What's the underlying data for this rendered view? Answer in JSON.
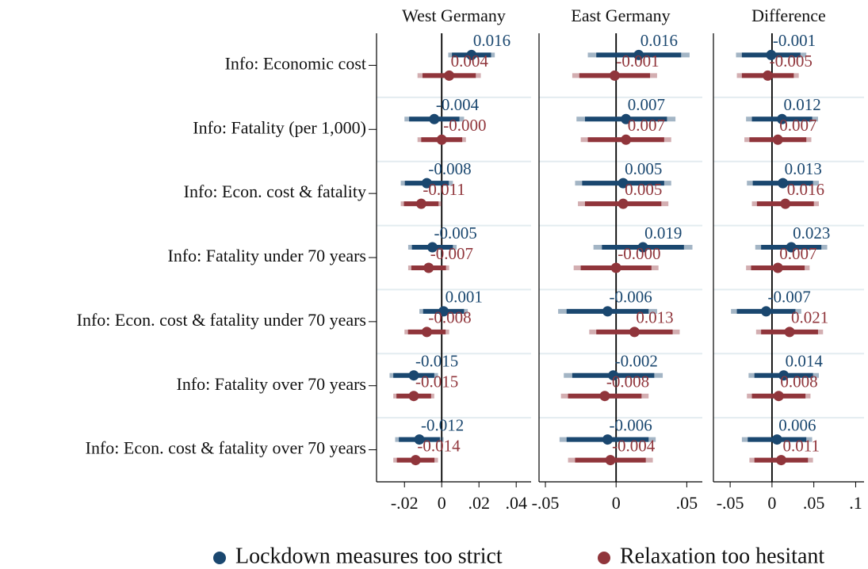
{
  "chart_data": [
    {
      "type": "coefplot",
      "title": "West Germany",
      "categories": [
        "Info: Economic cost",
        "Info: Fatality (per 1,000)",
        "Info: Econ. cost & fatality",
        "Info: Fatality under 70 years",
        "Info: Econ. cost & fatality under 70 years",
        "Info: Fatality over 70 years",
        "Info: Econ. cost & fatality over 70 years"
      ],
      "xlim": [
        -0.035,
        0.048
      ],
      "xticks": [
        {
          "value": -0.02,
          "label": "-.02"
        },
        0,
        {
          "value": 0.02,
          "label": ".02"
        },
        {
          "value": 0.04,
          "label": ".04"
        }
      ],
      "series": [
        {
          "name": "Lockdown measures too strict",
          "color": "#1a476f",
          "values": [
            0.016,
            -0.004,
            -0.008,
            -0.005,
            0.001,
            -0.015,
            -0.012
          ],
          "value_labels": [
            "0.016",
            "-0.004",
            "-0.008",
            "-0.005",
            "0.001",
            "-0.015",
            "-0.012"
          ],
          "error95": [
            0.0125,
            0.016,
            0.014,
            0.013,
            0.013,
            0.013,
            0.013
          ],
          "error90": [
            0.0105,
            0.0135,
            0.0118,
            0.011,
            0.011,
            0.011,
            0.011
          ]
        },
        {
          "name": "Relaxation too hesitant",
          "color": "#90353b",
          "values": [
            0.004,
            0,
            -0.011,
            -0.007,
            -0.008,
            -0.015,
            -0.014
          ],
          "value_labels": [
            "0.004",
            "-0.000",
            "-0.011",
            "-0.007",
            "-0.008",
            "-0.015",
            "-0.014"
          ],
          "error95": [
            0.017,
            0.013,
            0.011,
            0.011,
            0.012,
            0.011,
            0.012
          ],
          "error90": [
            0.0143,
            0.011,
            0.0093,
            0.0093,
            0.0101,
            0.0093,
            0.0101
          ]
        }
      ]
    },
    {
      "type": "coefplot",
      "title": "East Germany",
      "xlim": [
        -0.0545,
        0.061
      ],
      "xticks": [
        {
          "value": -0.05,
          "label": "-.05"
        },
        0,
        {
          "value": 0.05,
          "label": ".05"
        }
      ],
      "series": [
        {
          "color": "#1a476f",
          "values": [
            0.016,
            0.007,
            0.005,
            0.019,
            -0.006,
            -0.002,
            -0.006
          ],
          "value_labels": [
            "0.016",
            "0.007",
            "0.005",
            "0.019",
            "-0.006",
            "-0.002",
            "-0.006"
          ],
          "error95": [
            0.036,
            0.035,
            0.034,
            0.035,
            0.035,
            0.035,
            0.034
          ],
          "error90": [
            0.03,
            0.029,
            0.029,
            0.029,
            0.029,
            0.029,
            0.029
          ]
        },
        {
          "color": "#90353b",
          "values": [
            -0.001,
            0.007,
            0.005,
            0,
            0.013,
            -0.008,
            -0.004
          ],
          "value_labels": [
            "-0.001",
            "0.007",
            "0.005",
            "-0.000",
            "0.013",
            "-0.008",
            "-0.004"
          ],
          "error95": [
            0.03,
            0.032,
            0.032,
            0.03,
            0.032,
            0.031,
            0.03
          ],
          "error90": [
            0.025,
            0.027,
            0.027,
            0.025,
            0.027,
            0.026,
            0.025
          ]
        }
      ]
    },
    {
      "type": "coefplot",
      "title": "Difference",
      "xlim": [
        -0.07,
        0.11
      ],
      "xticks": [
        {
          "value": -0.05,
          "label": "-.05"
        },
        0,
        {
          "value": 0.05,
          "label": ".05"
        },
        {
          "value": 0.1,
          "label": ".1"
        }
      ],
      "series": [
        {
          "color": "#1a476f",
          "values": [
            -0.001,
            0.012,
            0.013,
            0.023,
            -0.007,
            0.014,
            0.006
          ],
          "value_labels": [
            "-0.001",
            "0.012",
            "0.013",
            "0.023",
            "-0.007",
            "0.014",
            "0.006"
          ],
          "error95": [
            0.042,
            0.043,
            0.043,
            0.043,
            0.042,
            0.042,
            0.042
          ],
          "error90": [
            0.035,
            0.036,
            0.036,
            0.036,
            0.035,
            0.035,
            0.035
          ]
        },
        {
          "color": "#90353b",
          "values": [
            -0.005,
            0.007,
            0.016,
            0.007,
            0.021,
            0.008,
            0.011
          ],
          "value_labels": [
            "-0.005",
            "0.007",
            "0.016",
            "0.007",
            "0.021",
            "0.008",
            "0.011"
          ],
          "error95": [
            0.037,
            0.04,
            0.04,
            0.038,
            0.04,
            0.038,
            0.038
          ],
          "error90": [
            0.031,
            0.034,
            0.034,
            0.032,
            0.034,
            0.032,
            0.032
          ]
        }
      ]
    }
  ]
}
